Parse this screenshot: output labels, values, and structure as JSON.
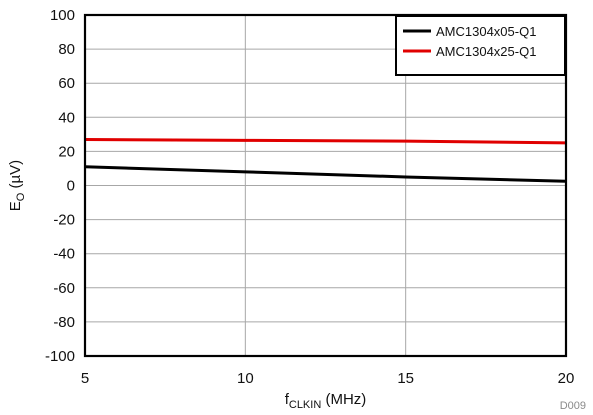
{
  "chart_data": {
    "type": "line",
    "xlabel": {
      "main": "f",
      "sub": "CLKIN",
      "suffix": " (MHz)"
    },
    "ylabel": {
      "main": "E",
      "sub": "O",
      "suffix": " (µV)"
    },
    "xlim": [
      5,
      20
    ],
    "ylim": [
      -100,
      100
    ],
    "x_ticks": [
      5,
      10,
      15,
      20
    ],
    "x_tick_labels": [
      "5",
      "10",
      "15",
      "20"
    ],
    "y_ticks": [
      100,
      80,
      60,
      40,
      20,
      0,
      -20,
      -40,
      -60,
      -80,
      -100
    ],
    "y_tick_labels": [
      "100",
      "80",
      "60",
      "40",
      "20",
      "0",
      "-20",
      "-40",
      "-60",
      "-80",
      "-100"
    ],
    "grid": true,
    "legend_position": "top-right",
    "series": [
      {
        "name": "AMC1304x05-Q1",
        "color": "#000000",
        "x": [
          5,
          10,
          15,
          20
        ],
        "y": [
          11,
          8,
          5,
          2.5
        ]
      },
      {
        "name": "AMC1304x25-Q1",
        "color": "#e00000",
        "x": [
          5,
          10,
          15,
          20
        ],
        "y": [
          27,
          26.5,
          26,
          25
        ]
      }
    ],
    "watermark": "D009"
  }
}
